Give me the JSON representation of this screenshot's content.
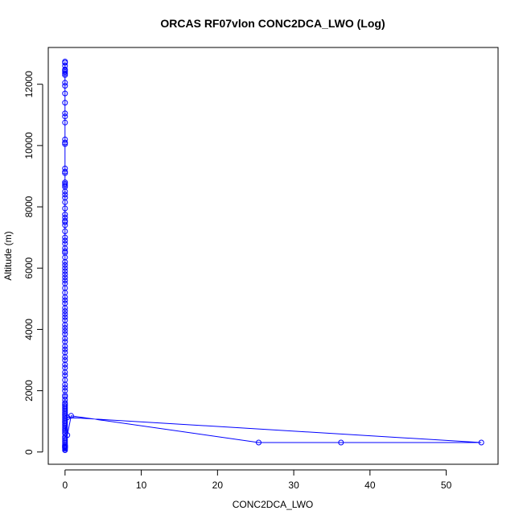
{
  "chart_data": {
    "type": "line",
    "title": "ORCAS RF07vlon CONC2DCA_LWO (Log)",
    "xlabel": "CONC2DCA_LWO",
    "ylabel": "Altitude (m)",
    "xlim": [
      -2.2,
      56.8
    ],
    "ylim": [
      -400,
      13200
    ],
    "xticks": [
      0,
      10,
      20,
      30,
      40,
      50
    ],
    "yticks": [
      0,
      2000,
      4000,
      6000,
      8000,
      10000,
      12000
    ],
    "grid": false,
    "marker": "open-circle",
    "colors": {
      "series": "#0000ff"
    },
    "x": [
      0,
      0,
      0,
      0,
      0,
      0,
      0,
      0,
      0,
      0,
      0,
      0,
      0,
      0,
      0,
      0,
      0,
      0,
      0,
      0,
      0,
      0,
      0,
      0,
      0,
      0,
      0,
      0,
      0,
      0,
      0,
      0,
      0,
      0,
      0,
      0,
      0,
      0,
      0,
      0,
      0,
      0,
      0,
      0,
      0,
      0,
      0,
      0,
      0,
      0,
      0,
      0,
      0,
      0,
      0,
      0,
      0,
      0,
      0,
      0,
      0,
      0,
      0,
      0,
      0,
      0,
      0,
      0,
      0,
      0,
      0,
      0,
      0,
      0,
      0,
      0,
      0,
      0,
      0,
      0,
      0,
      0,
      0,
      0,
      0,
      0,
      0,
      0,
      0,
      0,
      0,
      0,
      0,
      0,
      0,
      0,
      0,
      0,
      0,
      0,
      0,
      0,
      0,
      0,
      0.3,
      54.6,
      36.2,
      25.4,
      0.8,
      0.3,
      0,
      0,
      0,
      0,
      0,
      0,
      0,
      0,
      0,
      0,
      0,
      0,
      0,
      0
    ],
    "y": [
      12740,
      12700,
      12600,
      12480,
      12440,
      12400,
      12350,
      12300,
      12050,
      11950,
      11700,
      11400,
      11050,
      10950,
      10750,
      10200,
      10100,
      10050,
      9250,
      9150,
      9100,
      8800,
      8750,
      8700,
      8650,
      8500,
      8400,
      8300,
      8150,
      7950,
      7750,
      7650,
      7550,
      7500,
      7400,
      7200,
      7000,
      6900,
      6800,
      6650,
      6550,
      6500,
      6350,
      6200,
      6100,
      6000,
      5900,
      5800,
      5700,
      5600,
      5500,
      5350,
      5200,
      5050,
      4950,
      4850,
      4700,
      4600,
      4500,
      4400,
      4300,
      4150,
      4050,
      3950,
      3850,
      3700,
      3600,
      3450,
      3350,
      3250,
      3100,
      3000,
      2850,
      2750,
      2600,
      2500,
      2350,
      2200,
      2100,
      2000,
      1850,
      1800,
      1700,
      1600,
      1550,
      1500,
      1450,
      1400,
      1350,
      1300,
      1250,
      1200,
      1150,
      1100,
      1050,
      1000,
      950,
      900,
      850,
      800,
      750,
      700,
      650,
      600,
      1130,
      310,
      310,
      310,
      1180,
      550,
      500,
      450,
      400,
      350,
      300,
      250,
      200,
      180,
      160,
      150,
      130,
      100,
      60,
      200
    ]
  }
}
